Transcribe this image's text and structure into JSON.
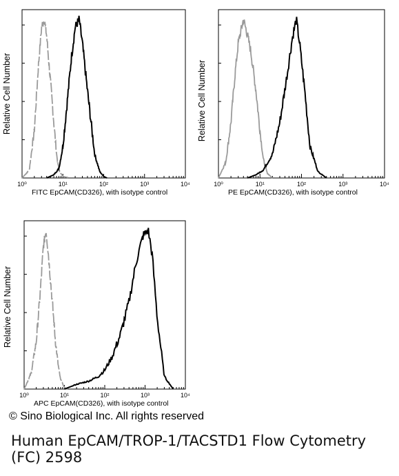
{
  "chart_data": [
    {
      "type": "histogram",
      "xscale": "log",
      "xlim": [
        1,
        10000
      ],
      "x_tick_labels": [
        "10⁰",
        "10¹",
        "10²",
        "10³",
        "10⁴"
      ],
      "xlabel": "FITC  EpCAM(CD326),  with isotype control",
      "ylabel": "Relative Cell Number",
      "series": [
        {
          "color": "#9a9a9a",
          "dashed": true,
          "x": [
            1,
            1.5,
            2,
            2.5,
            3,
            3.5,
            4,
            5,
            6,
            7,
            8,
            10,
            15
          ],
          "y": [
            0,
            0.05,
            0.3,
            0.7,
            0.95,
            1.0,
            0.9,
            0.6,
            0.35,
            0.15,
            0.05,
            0.01,
            0
          ]
        },
        {
          "color": "#000000",
          "dashed": false,
          "x": [
            4,
            6,
            8,
            10,
            13,
            16,
            20,
            25,
            30,
            40,
            60,
            80,
            100,
            120
          ],
          "y": [
            0,
            0.02,
            0.06,
            0.2,
            0.5,
            0.75,
            0.95,
            1.0,
            0.85,
            0.55,
            0.15,
            0.04,
            0.01,
            0
          ]
        }
      ]
    },
    {
      "type": "histogram",
      "xscale": "log",
      "xlim": [
        1,
        10000
      ],
      "x_tick_labels": [
        "10⁰",
        "10¹",
        "10²",
        "10³",
        "10⁴"
      ],
      "xlabel": "PE  EpCAM(CD326),  with isotype control",
      "ylabel": "Relative Cell Number",
      "series": [
        {
          "color": "#9a9a9a",
          "dashed": false,
          "x": [
            1,
            1.5,
            2,
            2.5,
            3,
            4,
            5,
            6,
            8,
            10,
            12,
            15,
            20
          ],
          "y": [
            0,
            0.1,
            0.35,
            0.65,
            0.85,
            1.0,
            0.9,
            0.8,
            0.55,
            0.3,
            0.12,
            0.03,
            0
          ]
        },
        {
          "color": "#000000",
          "dashed": false,
          "x": [
            5,
            8,
            12,
            20,
            30,
            45,
            60,
            75,
            90,
            120,
            160,
            250,
            400
          ],
          "y": [
            0,
            0.02,
            0.05,
            0.15,
            0.35,
            0.65,
            0.88,
            1.0,
            0.85,
            0.55,
            0.2,
            0.04,
            0
          ]
        }
      ]
    },
    {
      "type": "histogram",
      "xscale": "log",
      "xlim": [
        1,
        10000
      ],
      "x_tick_labels": [
        "10⁰",
        "10¹",
        "10²",
        "10³",
        "10⁴"
      ],
      "xlabel": "APC EpCAM(CD326), with isotype control",
      "ylabel": "Relative Cell Number",
      "series": [
        {
          "color": "#9a9a9a",
          "dashed": true,
          "x": [
            1,
            1.5,
            2,
            2.5,
            3,
            3.5,
            4,
            5,
            6,
            7,
            8,
            10,
            12
          ],
          "y": [
            0,
            0.1,
            0.3,
            0.6,
            0.9,
            1.0,
            0.85,
            0.55,
            0.3,
            0.15,
            0.06,
            0.01,
            0
          ]
        },
        {
          "color": "#000000",
          "dashed": false,
          "x": [
            10,
            20,
            40,
            70,
            100,
            150,
            250,
            400,
            600,
            900,
            1200,
            1500,
            2000,
            3000,
            5000
          ],
          "y": [
            0,
            0.03,
            0.05,
            0.08,
            0.12,
            0.2,
            0.35,
            0.55,
            0.8,
            0.97,
            1.0,
            0.85,
            0.45,
            0.08,
            0
          ]
        }
      ]
    }
  ],
  "copyright": "© Sino Biological Inc. All rights reserved",
  "caption": "Human EpCAM/TROP-1/TACSTD1 Flow Cytometry (FC) 2598"
}
